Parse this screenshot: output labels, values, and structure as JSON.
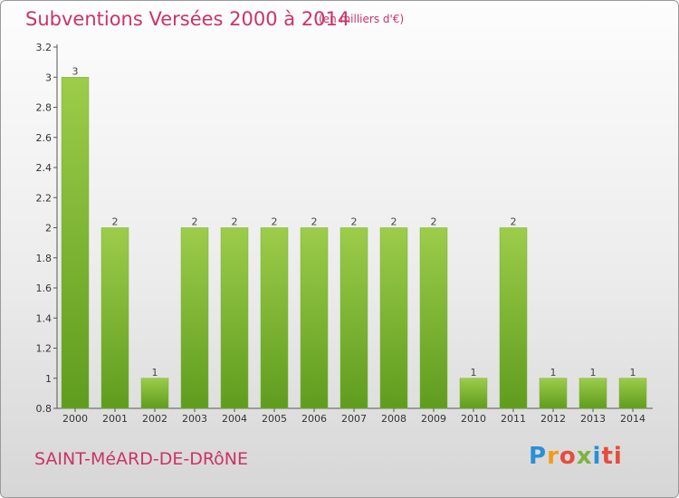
{
  "header": {
    "title": "Subventions Versées 2000 à 2014",
    "subtitle": "(en milliers d'€)"
  },
  "footer": {
    "commune": "SAINT-MéARD-DE-DRôNE",
    "logo": "Proxiti"
  },
  "colors": {
    "title": "#cc3366",
    "bar_light": "#9ccc4a",
    "bar_dark": "#5f9c1e"
  },
  "chart_data": {
    "type": "bar",
    "title": "Subventions Versées 2000 à 2014",
    "subtitle": "(en milliers d'€)",
    "categories": [
      "2000",
      "2001",
      "2002",
      "2003",
      "2004",
      "2005",
      "2006",
      "2007",
      "2008",
      "2009",
      "2010",
      "2011",
      "2012",
      "2013",
      "2014"
    ],
    "values": [
      3,
      2,
      1,
      2,
      2,
      2,
      2,
      2,
      2,
      2,
      1,
      2,
      1,
      1,
      1
    ],
    "data_labels": [
      "3",
      "2",
      "1",
      "2",
      "2",
      "2",
      "2",
      "2",
      "2",
      "2",
      "1",
      "2",
      "1",
      "1",
      "1"
    ],
    "y_ticks": [
      0.8,
      1,
      1.2,
      1.4,
      1.6,
      1.8,
      2,
      2.2,
      2.4,
      2.6,
      2.8,
      3,
      3.2
    ],
    "y_tick_labels": [
      "0.8",
      "1",
      "1.2",
      "1.4",
      "1.6",
      "1.8",
      "2",
      "2.2",
      "2.4",
      "2.6",
      "2.8",
      "3",
      "3.2"
    ],
    "ylim": [
      0.8,
      3.2
    ],
    "xlabel": "",
    "ylabel": "",
    "grid": false,
    "legend": "none"
  }
}
